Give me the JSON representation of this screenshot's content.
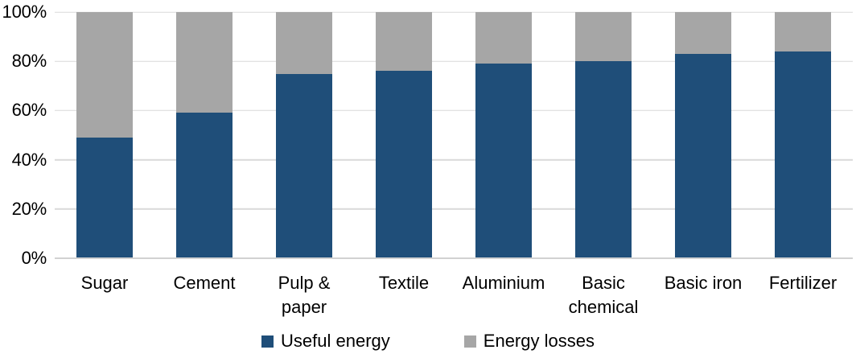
{
  "chart_data": {
    "type": "bar",
    "stacked": true,
    "percent_stacked": true,
    "title": "",
    "xlabel": "",
    "ylabel": "",
    "categories": [
      "Sugar",
      "Cement",
      "Pulp &\npaper",
      "Textile",
      "Aluminium",
      "Basic\nchemical",
      "Basic iron",
      "Fertilizer"
    ],
    "series": [
      {
        "name": "Useful energy",
        "color": "#1F4E79",
        "values": [
          49,
          59,
          75,
          76,
          79,
          80,
          83,
          84
        ]
      },
      {
        "name": "Energy losses",
        "color": "#A6A6A6",
        "values": [
          51,
          41,
          25,
          24,
          21,
          20,
          17,
          16
        ]
      }
    ],
    "ylim": [
      0,
      100
    ],
    "y_ticks": [
      "0%",
      "20%",
      "40%",
      "60%",
      "80%",
      "100%"
    ],
    "grid": true,
    "gridline_color": "#D9D9D9",
    "axis_line_color": "#D2D2D2",
    "axis_text_color": "#000000",
    "legend_position": "bottom"
  }
}
